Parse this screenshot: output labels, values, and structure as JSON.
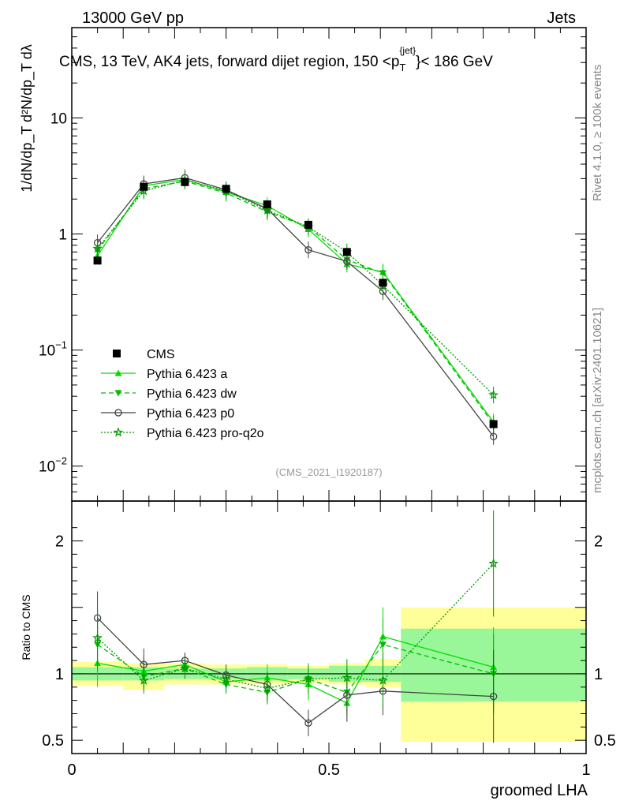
{
  "header": {
    "left": "13000 GeV pp",
    "right": "Jets"
  },
  "side_labels": {
    "rivet": "Rivet 4.1.0, ≥ 100k events",
    "mcplots": "mcplots.cern.ch [arXiv:2401.10621]"
  },
  "chart_data": {
    "type": "line",
    "title": "CMS, 13 TeV, AK4 jets, forward dijet region, 150 <p_T^{jet}< 186 GeV",
    "title_text": "CMS, 13 TeV, AK4 jets, forward dijet region, 150 <p",
    "title_sup": "{jet}",
    "title_sub": "T",
    "title_tail": "}< 186 GeV",
    "ylabel": "1/dN/dp_T  d²N/dp_T dλ",
    "xlabel": "groomed LHA",
    "ratio_ylabel": "Ratio to CMS",
    "analysis_tag": "(CMS_2021_I1920187)",
    "xlim": [
      0,
      1
    ],
    "ylim": [
      0.005,
      60
    ],
    "yscale": "log",
    "ratio_ylim": [
      0.4,
      2.3
    ],
    "x_ticks": [
      {
        "v": 0,
        "label": "0"
      },
      {
        "v": 0.5,
        "label": "0.5"
      },
      {
        "v": 1,
        "label": "1"
      }
    ],
    "y_ticks": [
      {
        "v": 0.01,
        "base": "10",
        "exp": "−2"
      },
      {
        "v": 0.1,
        "base": "10",
        "exp": "−1"
      },
      {
        "v": 1,
        "base": "1",
        "exp": ""
      },
      {
        "v": 10,
        "base": "10",
        "exp": ""
      }
    ],
    "ratio_ticks": [
      {
        "v": 0.5,
        "label": "0.5"
      },
      {
        "v": 1,
        "label": "1"
      },
      {
        "v": 2,
        "label": "2"
      }
    ],
    "bin_edges": [
      0,
      0.1,
      0.18,
      0.26,
      0.34,
      0.42,
      0.5,
      0.57,
      0.64,
      1.0
    ],
    "x": [
      0.05,
      0.14,
      0.22,
      0.3,
      0.38,
      0.46,
      0.535,
      0.605,
      0.82
    ],
    "cms": {
      "name": "CMS",
      "values": [
        0.59,
        2.55,
        2.8,
        2.45,
        1.8,
        1.2,
        0.7,
        0.38,
        0.023
      ],
      "band_stat": [
        [
          0.95,
          1.05
        ],
        [
          0.95,
          1.05
        ],
        [
          0.96,
          1.04
        ],
        [
          0.96,
          1.04
        ],
        [
          0.95,
          1.05
        ],
        [
          0.96,
          1.04
        ],
        [
          0.94,
          1.06
        ],
        [
          0.94,
          1.06
        ],
        [
          0.79,
          1.34
        ]
      ],
      "band_total": [
        [
          0.91,
          1.09
        ],
        [
          0.88,
          1.08
        ],
        [
          0.92,
          1.08
        ],
        [
          0.92,
          1.07
        ],
        [
          0.92,
          1.07
        ],
        [
          0.93,
          1.06
        ],
        [
          0.92,
          1.08
        ],
        [
          0.9,
          1.11
        ],
        [
          0.49,
          1.5
        ]
      ]
    },
    "series": [
      {
        "name": "Pythia 6.423 a",
        "color": "#00dd00",
        "dash": "",
        "marker": "triangle-up",
        "values": [
          0.65,
          2.6,
          2.95,
          2.3,
          1.75,
          1.1,
          0.55,
          0.47,
          0.024
        ],
        "ratio": [
          1.08,
          1.02,
          1.07,
          0.94,
          0.97,
          0.92,
          0.78,
          1.28,
          1.05
        ],
        "ratio_err": [
          0.18,
          0.12,
          0.08,
          0.08,
          0.1,
          0.12,
          0.14,
          0.22,
          0.3
        ]
      },
      {
        "name": "Pythia 6.423 dw",
        "color": "#00bb00",
        "dash": "6,4",
        "marker": "triangle-down",
        "values": [
          0.72,
          2.45,
          2.85,
          2.25,
          1.55,
          1.15,
          0.6,
          0.46,
          0.023
        ],
        "ratio": [
          1.22,
          0.98,
          1.04,
          0.92,
          0.86,
          0.96,
          0.86,
          1.22,
          1.0
        ],
        "ratio_err": [
          0.2,
          0.1,
          0.08,
          0.07,
          0.09,
          0.12,
          0.16,
          0.2,
          0.3
        ]
      },
      {
        "name": "Pythia 6.423 p0",
        "color": "#444444",
        "dash": "",
        "marker": "circle",
        "values": [
          0.84,
          2.7,
          3.05,
          2.4,
          1.65,
          0.73,
          0.58,
          0.32,
          0.018
        ],
        "ratio": [
          1.42,
          1.07,
          1.1,
          0.99,
          0.92,
          0.63,
          0.84,
          0.87,
          0.83
        ],
        "ratio_err": [
          0.2,
          0.12,
          0.06,
          0.08,
          0.09,
          0.1,
          0.2,
          0.18,
          0.35
        ]
      },
      {
        "name": "Pythia 6.423 pro-q2o",
        "color": "#009900",
        "dash": "2,2",
        "marker": "star",
        "values": [
          0.75,
          2.35,
          2.9,
          2.35,
          1.6,
          1.15,
          0.7,
          0.36,
          0.041
        ],
        "ratio": [
          1.27,
          0.95,
          1.04,
          0.96,
          0.89,
          0.96,
          0.97,
          0.95,
          1.83
        ],
        "ratio_err": [
          0.22,
          0.1,
          0.07,
          0.07,
          0.1,
          0.1,
          0.14,
          0.2,
          0.4
        ]
      }
    ]
  },
  "style": {
    "band_stat_color": "#99f799",
    "band_total_color": "#ffff99"
  }
}
